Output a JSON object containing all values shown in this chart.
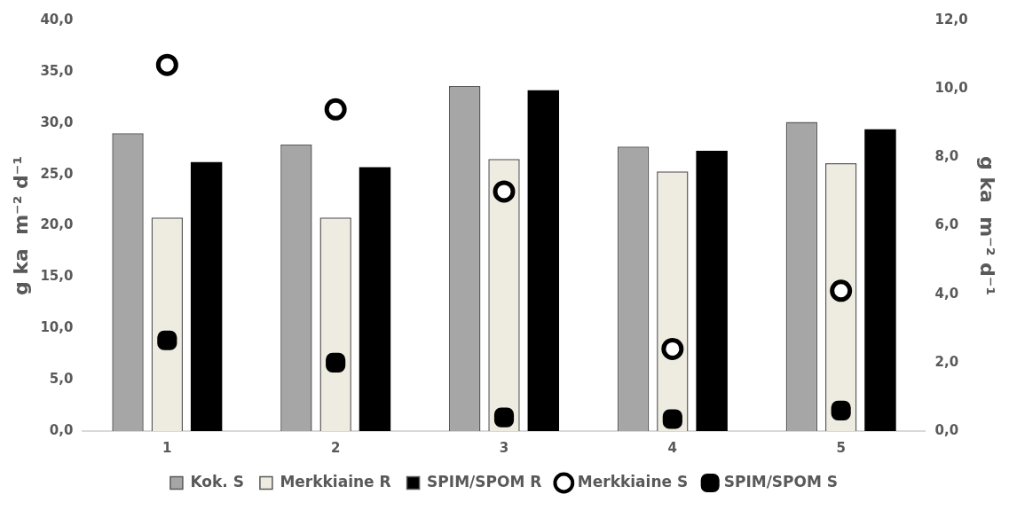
{
  "chart_data": {
    "type": "bar",
    "categories": [
      "1",
      "2",
      "3",
      "4",
      "5"
    ],
    "ylabel": "g ka  m⁻² d⁻¹",
    "y2label": "g ka  m⁻² d⁻¹",
    "ylim": [
      0,
      40
    ],
    "yticks": [
      {
        "value": 0,
        "label": "0,0"
      },
      {
        "value": 5,
        "label": "5,0"
      },
      {
        "value": 10,
        "label": "10,0"
      },
      {
        "value": 15,
        "label": "15,0"
      },
      {
        "value": 20,
        "label": "20,0"
      },
      {
        "value": 25,
        "label": "25,0"
      },
      {
        "value": 30,
        "label": "30,0"
      },
      {
        "value": 35,
        "label": "35,0"
      },
      {
        "value": 40,
        "label": "40,0"
      }
    ],
    "y2lim": [
      0,
      12
    ],
    "y2ticks": [
      {
        "value": 0,
        "label": "0,0"
      },
      {
        "value": 2,
        "label": "2,0"
      },
      {
        "value": 4,
        "label": "4,0"
      },
      {
        "value": 6,
        "label": "6,0"
      },
      {
        "value": 8,
        "label": "8,0"
      },
      {
        "value": 10,
        "label": "10,0"
      },
      {
        "value": 12,
        "label": "12,0"
      }
    ],
    "grid": false,
    "legend": "bottom",
    "series": [
      {
        "name": "Kok. S",
        "color": "#a6a6a6",
        "values": [
          29.0,
          27.9,
          33.6,
          27.7,
          30.1
        ]
      },
      {
        "name": "Merkkiaine R",
        "color": "#eeece1",
        "values": [
          20.8,
          20.8,
          26.5,
          25.3,
          26.1
        ]
      },
      {
        "name": "SPIM/SPOM R",
        "color": "#000000",
        "values": [
          26.2,
          25.7,
          33.2,
          27.3,
          29.4
        ]
      },
      {
        "name": "Merkkiaine S",
        "type": "scatter",
        "axis": "y2",
        "marker": "circle",
        "color": "#ffffff",
        "x": [
          "1",
          "2",
          "3",
          "4",
          "5"
        ],
        "values": [
          10.7,
          9.4,
          7.0,
          2.4,
          4.1
        ]
      },
      {
        "name": "SPIM/SPOM S",
        "type": "scatter",
        "axis": "y2",
        "marker": "square",
        "color": "#000000",
        "x": [
          "1",
          "2",
          "3",
          "4",
          "5"
        ],
        "values": [
          2.65,
          2.0,
          0.4,
          0.35,
          0.6
        ]
      }
    ]
  }
}
